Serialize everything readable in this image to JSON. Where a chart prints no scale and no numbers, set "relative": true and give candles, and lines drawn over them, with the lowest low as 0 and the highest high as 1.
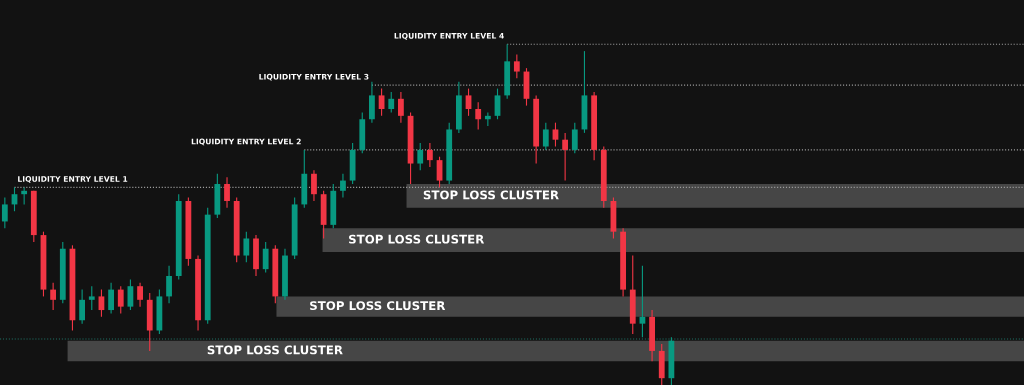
{
  "chart_data": {
    "type": "candlestick",
    "relative": true,
    "categories": [
      null,
      null,
      null,
      null,
      null,
      null,
      null,
      null,
      null,
      null,
      null,
      null,
      null,
      null,
      null,
      null,
      null,
      null,
      null,
      null,
      null,
      null,
      null,
      null,
      null,
      null,
      null,
      null,
      null,
      null,
      null,
      null,
      null,
      null,
      null,
      null,
      null,
      null,
      null,
      null,
      null,
      null,
      null,
      null,
      null,
      null,
      null,
      null,
      null,
      null,
      null,
      null,
      null,
      null,
      null,
      null,
      null,
      null,
      null,
      null,
      null,
      null,
      null,
      null,
      null,
      null,
      null,
      null,
      null,
      null,
      null,
      null,
      null,
      null,
      null,
      null,
      null,
      null,
      null,
      null,
      null,
      null,
      null,
      null,
      null,
      null,
      null,
      null,
      null,
      null,
      null,
      null,
      null,
      null,
      null,
      null,
      null,
      null,
      null,
      null,
      null,
      null,
      null,
      null,
      null,
      null
    ],
    "ohlc": [
      [
        0.48,
        0.55,
        0.46,
        0.53
      ],
      [
        0.53,
        0.58,
        0.51,
        0.56
      ],
      [
        0.56,
        0.58,
        0.53,
        0.57
      ],
      [
        0.57,
        0.57,
        0.42,
        0.44
      ],
      [
        0.44,
        0.45,
        0.26,
        0.28
      ],
      [
        0.28,
        0.3,
        0.22,
        0.25
      ],
      [
        0.25,
        0.42,
        0.24,
        0.4
      ],
      [
        0.4,
        0.41,
        0.16,
        0.19
      ],
      [
        0.19,
        0.28,
        0.18,
        0.25
      ],
      [
        0.25,
        0.29,
        0.22,
        0.26
      ],
      [
        0.26,
        0.28,
        0.2,
        0.22
      ],
      [
        0.22,
        0.3,
        0.21,
        0.28
      ],
      [
        0.28,
        0.29,
        0.21,
        0.23
      ],
      [
        0.23,
        0.31,
        0.22,
        0.29
      ],
      [
        0.29,
        0.3,
        0.23,
        0.25
      ],
      [
        0.25,
        0.27,
        0.1,
        0.16
      ],
      [
        0.16,
        0.28,
        0.15,
        0.26
      ],
      [
        0.26,
        0.35,
        0.24,
        0.32
      ],
      [
        0.32,
        0.56,
        0.31,
        0.54
      ],
      [
        0.54,
        0.55,
        0.35,
        0.37
      ],
      [
        0.37,
        0.38,
        0.16,
        0.19
      ],
      [
        0.19,
        0.52,
        0.18,
        0.5
      ],
      [
        0.5,
        0.62,
        0.49,
        0.59
      ],
      [
        0.59,
        0.61,
        0.52,
        0.54
      ],
      [
        0.54,
        0.55,
        0.36,
        0.38
      ],
      [
        0.38,
        0.45,
        0.36,
        0.43
      ],
      [
        0.43,
        0.44,
        0.32,
        0.34
      ],
      [
        0.34,
        0.42,
        0.33,
        0.4
      ],
      [
        0.4,
        0.41,
        0.24,
        0.26
      ],
      [
        0.26,
        0.4,
        0.25,
        0.38
      ],
      [
        0.38,
        0.55,
        0.37,
        0.53
      ],
      [
        0.53,
        0.69,
        0.52,
        0.62
      ],
      [
        0.62,
        0.63,
        0.54,
        0.56
      ],
      [
        0.56,
        0.57,
        0.43,
        0.47
      ],
      [
        0.47,
        0.59,
        0.46,
        0.57
      ],
      [
        0.57,
        0.62,
        0.55,
        0.6
      ],
      [
        0.6,
        0.71,
        0.59,
        0.69
      ],
      [
        0.69,
        0.8,
        0.68,
        0.78
      ],
      [
        0.78,
        0.89,
        0.77,
        0.85
      ],
      [
        0.85,
        0.87,
        0.79,
        0.81
      ],
      [
        0.81,
        0.86,
        0.8,
        0.84
      ],
      [
        0.84,
        0.86,
        0.77,
        0.79
      ],
      [
        0.79,
        0.8,
        0.59,
        0.65
      ],
      [
        0.65,
        0.71,
        0.63,
        0.69
      ],
      [
        0.69,
        0.71,
        0.64,
        0.66
      ],
      [
        0.66,
        0.67,
        0.58,
        0.6
      ],
      [
        0.6,
        0.77,
        0.59,
        0.75
      ],
      [
        0.75,
        0.89,
        0.74,
        0.85
      ],
      [
        0.85,
        0.87,
        0.79,
        0.81
      ],
      [
        0.81,
        0.83,
        0.75,
        0.78
      ],
      [
        0.78,
        0.8,
        0.76,
        0.79
      ],
      [
        0.79,
        0.87,
        0.78,
        0.85
      ],
      [
        0.85,
        1.0,
        0.84,
        0.95
      ],
      [
        0.95,
        0.97,
        0.9,
        0.92
      ],
      [
        0.92,
        0.93,
        0.82,
        0.84
      ],
      [
        0.84,
        0.85,
        0.65,
        0.7
      ],
      [
        0.7,
        0.77,
        0.69,
        0.75
      ],
      [
        0.75,
        0.77,
        0.7,
        0.72
      ],
      [
        0.72,
        0.74,
        0.6,
        0.69
      ],
      [
        0.69,
        0.77,
        0.68,
        0.75
      ],
      [
        0.75,
        0.98,
        0.74,
        0.85
      ],
      [
        0.85,
        0.86,
        0.66,
        0.69
      ],
      [
        0.69,
        0.7,
        0.52,
        0.54
      ],
      [
        0.54,
        0.55,
        0.43,
        0.45
      ],
      [
        0.45,
        0.46,
        0.26,
        0.28
      ],
      [
        0.28,
        0.38,
        0.15,
        0.18
      ],
      [
        0.18,
        0.35,
        0.14,
        0.2
      ],
      [
        0.2,
        0.22,
        0.07,
        0.1
      ],
      [
        0.1,
        0.12,
        0.0,
        0.02
      ],
      [
        0.02,
        0.14,
        0.0,
        0.13
      ],
      null,
      null,
      null,
      null,
      null,
      null,
      null,
      null,
      null,
      null,
      null,
      null,
      null,
      null,
      null,
      null,
      null,
      null,
      null,
      null,
      null,
      null,
      null,
      null,
      null,
      null,
      null,
      null,
      null,
      null,
      null,
      null,
      null,
      null,
      null,
      null
    ],
    "colors": [
      "#089981",
      "#089981",
      "#089981",
      "#f23645",
      "#f23645",
      "#f23645",
      "#089981",
      "#f23645",
      "#089981",
      "#089981",
      "#f23645",
      "#089981",
      "#f23645",
      "#089981",
      "#f23645",
      "#f23645",
      "#089981",
      "#089981",
      "#089981",
      "#f23645",
      "#f23645",
      "#089981",
      "#089981",
      "#f23645",
      "#f23645",
      "#089981",
      "#f23645",
      "#089981",
      "#f23645",
      "#089981",
      "#089981",
      "#089981",
      "#f23645",
      "#f23645",
      "#089981",
      "#089981",
      "#089981",
      "#089981",
      "#089981",
      "#f23645",
      "#089981",
      "#f23645",
      "#f23645",
      "#089981",
      "#f23645",
      "#f23645",
      "#089981",
      "#089981",
      "#f23645",
      "#f23645",
      "#089981",
      "#089981",
      "#089981",
      "#f23645",
      "#f23645",
      "#f23645",
      "#089981",
      "#f23645",
      "#f23645",
      "#089981",
      "#089981",
      "#f23645",
      "#f23645",
      "#f23645",
      "#f23645",
      "#f23645",
      "#089981",
      "#f23645",
      "#f23645",
      "#089981",
      null,
      null,
      null,
      null,
      null,
      null,
      null,
      null,
      null,
      null,
      null,
      null,
      null,
      null,
      null,
      null,
      null,
      null,
      null,
      null,
      null,
      null,
      null,
      null,
      null,
      null,
      null,
      null,
      null,
      null,
      null,
      null,
      null,
      null,
      null,
      null
    ],
    "ref_lines": [
      {
        "axis": "y",
        "value": 0.58,
        "label": "LIQUIDITY ENTRY LEVEL 1",
        "color": "#9e9e9e",
        "line_style": "dotted"
      },
      {
        "axis": "y",
        "value": 0.69,
        "label": "LIQUIDITY ENTRY LEVEL 2",
        "color": "#9e9e9e",
        "line_style": "dotted"
      },
      {
        "axis": "y",
        "value": 0.88,
        "label": "LIQUIDITY ENTRY LEVEL 3",
        "color": "#9e9e9e",
        "line_style": "dotted"
      },
      {
        "axis": "y",
        "value": 1.0,
        "label": "LIQUIDITY ENTRY LEVEL 4",
        "color": "#9e9e9e",
        "line_style": "dotted"
      },
      {
        "axis": "y",
        "value": 0.135,
        "color": "#1f6f63",
        "line_style": "dotted"
      }
    ],
    "bands": [
      {
        "axis": "y",
        "from": 0.52,
        "to": 0.59,
        "label": "STOP LOSS CLUSTER",
        "color": "#4a4a4a"
      },
      {
        "axis": "y",
        "from": 0.39,
        "to": 0.46,
        "label": "STOP LOSS CLUSTER",
        "color": "#4a4a4a"
      },
      {
        "axis": "y",
        "from": 0.2,
        "to": 0.26,
        "label": "STOP LOSS CLUSTER",
        "color": "#4a4a4a"
      },
      {
        "axis": "y",
        "from": 0.07,
        "to": 0.13,
        "label": "STOP LOSS CLUSTER",
        "color": "#4a4a4a"
      }
    ]
  }
}
